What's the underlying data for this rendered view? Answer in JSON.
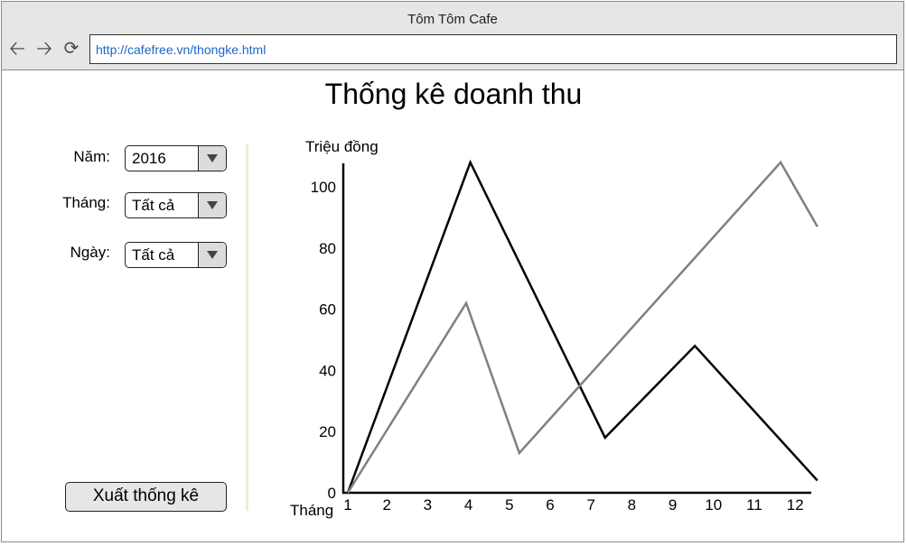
{
  "window": {
    "title": "Tôm Tôm Cafe"
  },
  "browser": {
    "url": "http://cafefree.vn/thongke.html"
  },
  "page": {
    "title": "Thống kê doanh thu"
  },
  "filters": {
    "year": {
      "label": "Năm:",
      "value": "2016"
    },
    "month": {
      "label": "Tháng:",
      "value": "Tất cả"
    },
    "day": {
      "label": "Ngày:",
      "value": "Tất cả"
    }
  },
  "export_button": {
    "label": "Xuất thống kê"
  },
  "chart_data": {
    "type": "line",
    "ylabel": "Triệu đồng",
    "xlabel": "Tháng",
    "ylim": [
      0,
      110
    ],
    "yticks": [
      0,
      20,
      40,
      60,
      80,
      100
    ],
    "categories": [
      "1",
      "2",
      "3",
      "4",
      "5",
      "6",
      "7",
      "8",
      "9",
      "10",
      "11",
      "12"
    ],
    "series": [
      {
        "color": "#000000",
        "points": [
          [
            1,
            0
          ],
          [
            4,
            108
          ],
          [
            7.3,
            18
          ],
          [
            9.5,
            48
          ],
          [
            12.5,
            4
          ]
        ]
      },
      {
        "color": "#808080",
        "points": [
          [
            1,
            0
          ],
          [
            3.9,
            62
          ],
          [
            5.2,
            13
          ],
          [
            11.6,
            108
          ],
          [
            12.5,
            87
          ]
        ]
      }
    ]
  }
}
